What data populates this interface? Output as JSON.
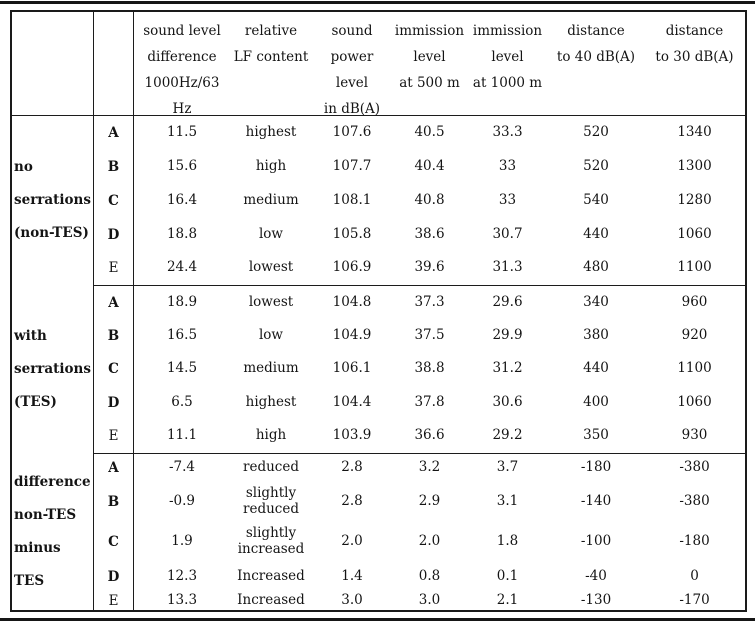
{
  "header": {
    "columns": [
      {
        "id": "sound-level-difference",
        "lines": [
          "sound level",
          "difference",
          "1000Hz/63 Hz"
        ]
      },
      {
        "id": "relative-lf-content",
        "lines": [
          "relative",
          "LF content"
        ]
      },
      {
        "id": "sound-power-level",
        "lines": [
          "sound",
          "power",
          "level",
          "in dB(A)"
        ]
      },
      {
        "id": "immission-level-500m",
        "lines": [
          "immission",
          "level",
          "at 500 m"
        ]
      },
      {
        "id": "immission-level-1000m",
        "lines": [
          "immission",
          "level",
          "at 1000 m"
        ]
      },
      {
        "id": "distance-to-40-dba",
        "lines": [
          "distance",
          "to 40 dB(A)"
        ]
      },
      {
        "id": "distance-to-30-dba",
        "lines": [
          "distance",
          "to 30 dB(A)"
        ]
      }
    ]
  },
  "groups": [
    {
      "id": "no-serrations",
      "label_lines": [
        "no",
        "serrations",
        "(non-TES)"
      ],
      "rows": [
        {
          "letter": "A",
          "bold": true,
          "values": [
            "11.5",
            "highest",
            "107.6",
            "40.5",
            "33.3",
            "520",
            "1340"
          ]
        },
        {
          "letter": "B",
          "bold": true,
          "values": [
            "15.6",
            "high",
            "107.7",
            "40.4",
            "33",
            "520",
            "1300"
          ]
        },
        {
          "letter": "C",
          "bold": true,
          "values": [
            "16.4",
            "medium",
            "108.1",
            "40.8",
            "33",
            "540",
            "1280"
          ]
        },
        {
          "letter": "D",
          "bold": true,
          "values": [
            "18.8",
            "low",
            "105.8",
            "38.6",
            "30.7",
            "440",
            "1060"
          ]
        },
        {
          "letter": "E",
          "bold": false,
          "values": [
            "24.4",
            "lowest",
            "106.9",
            "39.6",
            "31.3",
            "480",
            "1100"
          ]
        }
      ]
    },
    {
      "id": "with-serrations",
      "label_lines": [
        "with",
        "serrations",
        "(TES)"
      ],
      "rows": [
        {
          "letter": "A",
          "bold": true,
          "values": [
            "18.9",
            "lowest",
            "104.8",
            "37.3",
            "29.6",
            "340",
            "960"
          ]
        },
        {
          "letter": "B",
          "bold": true,
          "values": [
            "16.5",
            "low",
            "104.9",
            "37.5",
            "29.9",
            "380",
            "920"
          ]
        },
        {
          "letter": "C",
          "bold": true,
          "values": [
            "14.5",
            "medium",
            "106.1",
            "38.8",
            "31.2",
            "440",
            "1100"
          ]
        },
        {
          "letter": "D",
          "bold": true,
          "values": [
            "6.5",
            "highest",
            "104.4",
            "37.8",
            "30.6",
            "400",
            "1060"
          ]
        },
        {
          "letter": "E",
          "bold": false,
          "values": [
            "11.1",
            "high",
            "103.9",
            "36.6",
            "29.2",
            "350",
            "930"
          ]
        }
      ]
    },
    {
      "id": "difference-non-tes-minus-tes",
      "label_lines": [
        "difference",
        "non-TES",
        "minus TES"
      ],
      "rows": [
        {
          "letter": "A",
          "bold": true,
          "values": [
            "-7.4",
            "reduced",
            "2.8",
            "3.2",
            "3.7",
            "-180",
            "-380"
          ]
        },
        {
          "letter": "B",
          "bold": true,
          "values": [
            "-0.9",
            "slightly\nreduced",
            "2.8",
            "2.9",
            "3.1",
            "-140",
            "-380"
          ]
        },
        {
          "letter": "C",
          "bold": true,
          "values": [
            "1.9",
            "slightly\nincreased",
            "2.0",
            "2.0",
            "1.8",
            "-100",
            "-180"
          ]
        },
        {
          "letter": "D",
          "bold": true,
          "values": [
            "12.3",
            "Increased",
            "1.4",
            "0.8",
            "0.1",
            "-40",
            "0"
          ]
        },
        {
          "letter": "E",
          "bold": false,
          "values": [
            "13.3",
            "Increased",
            "3.0",
            "3.0",
            "2.1",
            "-130",
            "-170"
          ]
        }
      ]
    }
  ]
}
